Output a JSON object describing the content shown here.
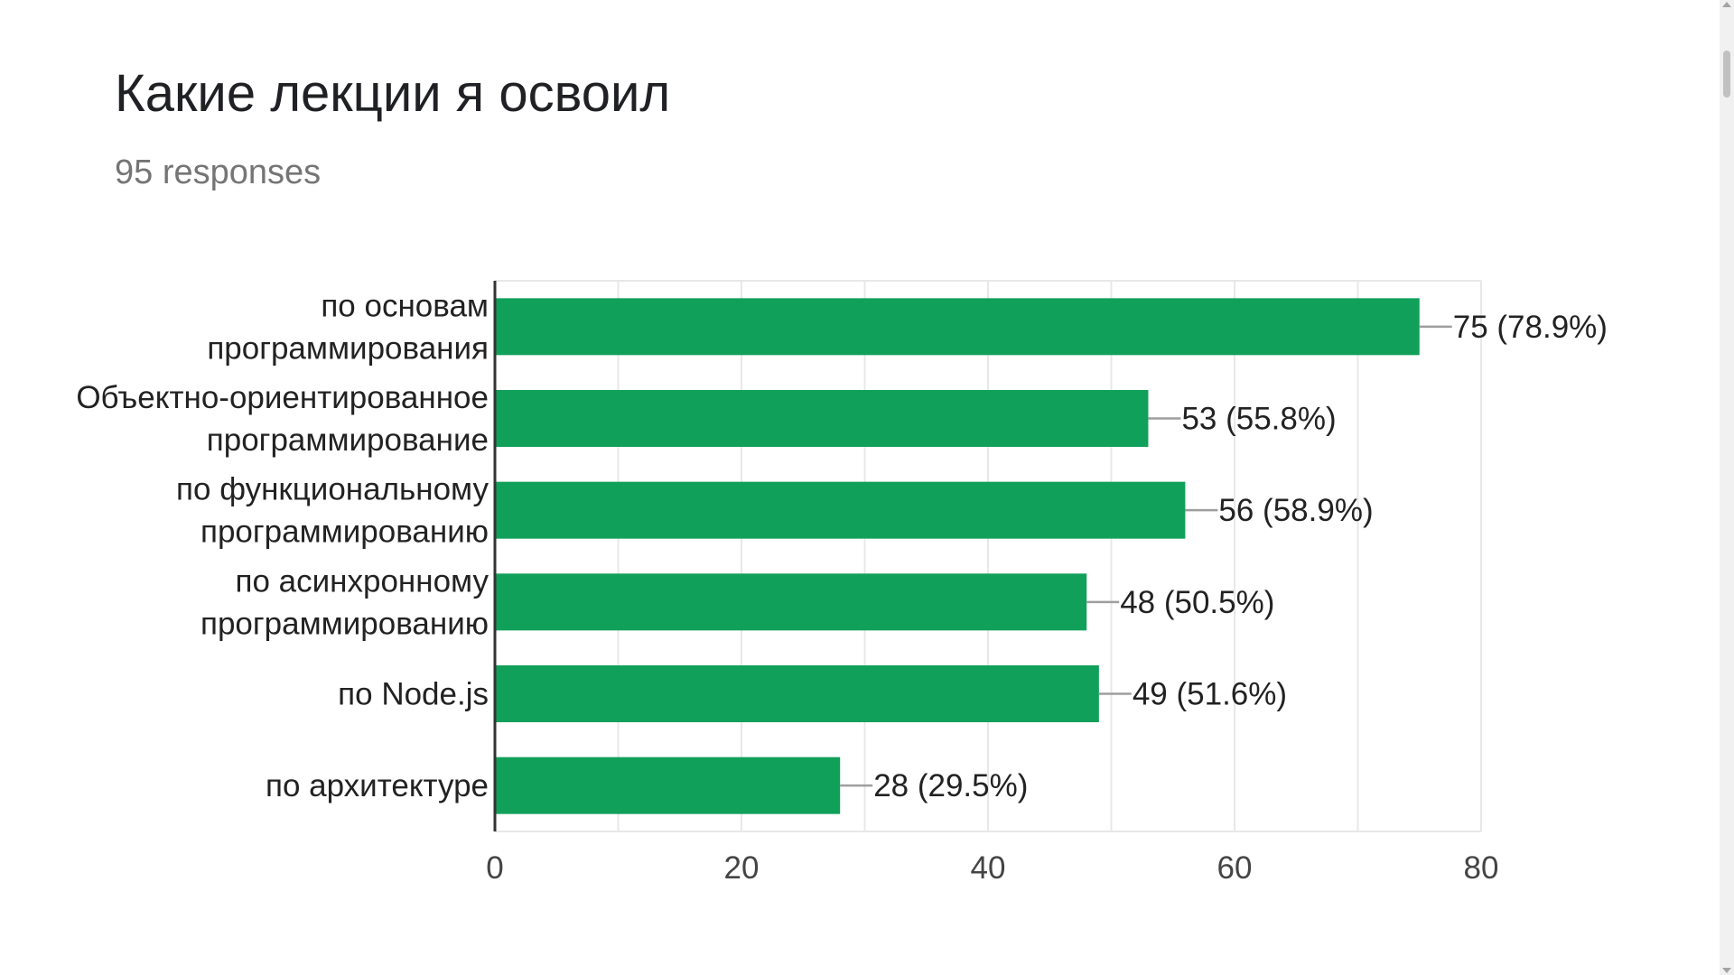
{
  "title": "Какие лекции я освоил",
  "subtitle": "95 responses",
  "colors": {
    "bar": "#11a05a",
    "grid": "#e8e8e8",
    "axis": "#333333",
    "text": "#222222",
    "tick_text": "#444444",
    "leader": "#9e9e9e"
  },
  "chart_data": {
    "type": "bar",
    "orientation": "horizontal",
    "categories": [
      [
        "по основам",
        "программирования"
      ],
      [
        "Объектно-ориентированное",
        "программирование"
      ],
      [
        "по функциональному",
        "программированию"
      ],
      [
        "по асинхронному",
        "программированию"
      ],
      [
        "по Node.js"
      ],
      [
        "по архитектуре"
      ]
    ],
    "values": [
      75,
      53,
      56,
      48,
      49,
      28
    ],
    "data_labels": [
      "75 (78.9%)",
      "53 (55.8%)",
      "56 (58.9%)",
      "48 (50.5%)",
      "49 (51.6%)",
      "28 (29.5%)"
    ],
    "xlim": [
      0,
      80
    ],
    "xticks": [
      0,
      20,
      40,
      60,
      80
    ],
    "grid": true,
    "legend": "none"
  }
}
